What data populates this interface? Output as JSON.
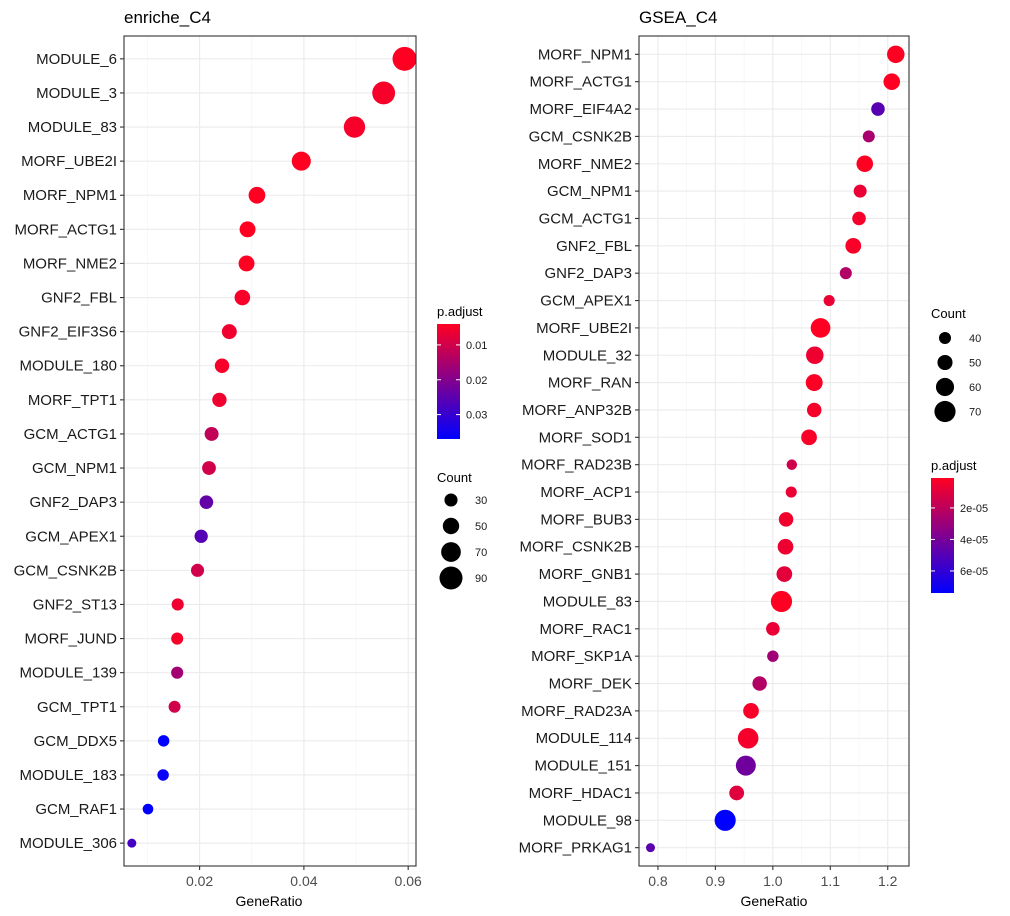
{
  "chart_data": [
    {
      "type": "scatter",
      "title": "enriche_C4",
      "xlabel": "GeneRatio",
      "ylabel": "",
      "xlim": [
        0.0055,
        0.0615
      ],
      "xticks": [
        0.02,
        0.04,
        0.06
      ],
      "xtick_labels": [
        "0.02",
        "0.04",
        "0.06"
      ],
      "grid": true,
      "color_var": "p.adjust",
      "size_var": "Count",
      "color_range": [
        0.004,
        0.037
      ],
      "color_low": "#FF0022",
      "color_high": "#0000FF",
      "size_range": [
        5,
        96
      ],
      "categories": [
        "MODULE_6",
        "MODULE_3",
        "MODULE_83",
        "MORF_UBE2I",
        "MORF_NPM1",
        "MORF_ACTG1",
        "MORF_NME2",
        "GNF2_FBL",
        "GNF2_EIF3S6",
        "MODULE_180",
        "MORF_TPT1",
        "GCM_ACTG1",
        "GCM_NPM1",
        "GNF2_DAP3",
        "GCM_APEX1",
        "GCM_CSNK2B",
        "GNF2_ST13",
        "MORF_JUND",
        "MODULE_139",
        "GCM_TPT1",
        "GCM_DDX5",
        "MODULE_183",
        "GCM_RAF1",
        "MODULE_306"
      ],
      "x": [
        0.0593,
        0.0553,
        0.0497,
        0.0395,
        0.031,
        0.0292,
        0.029,
        0.0282,
        0.0257,
        0.0243,
        0.0238,
        0.0223,
        0.0218,
        0.0213,
        0.0203,
        0.0196,
        0.0158,
        0.0157,
        0.0157,
        0.0152,
        0.0131,
        0.013,
        0.0101,
        0.007
      ],
      "count": [
        96,
        89,
        80,
        66,
        52,
        47,
        47,
        45,
        41,
        38,
        37,
        35,
        34,
        33,
        31,
        30,
        24,
        24,
        24,
        23,
        20,
        20,
        15,
        5
      ],
      "p_adjust": [
        0.004,
        0.005,
        0.005,
        0.004,
        0.004,
        0.004,
        0.004,
        0.005,
        0.006,
        0.005,
        0.006,
        0.012,
        0.01,
        0.024,
        0.026,
        0.01,
        0.006,
        0.005,
        0.016,
        0.01,
        0.037,
        0.036,
        0.037,
        0.028
      ],
      "legend": {
        "color_title": "p.adjust",
        "color_ticks": [
          0.01,
          0.02,
          0.03
        ],
        "color_tick_labels": [
          "0.01",
          "0.02",
          "0.03"
        ],
        "size_title": "Count",
        "size_ticks": [
          30,
          50,
          70,
          90
        ],
        "size_tick_labels": [
          "30",
          "50",
          "70",
          "90"
        ],
        "placement": "right"
      }
    },
    {
      "type": "scatter",
      "title": "GSEA_C4",
      "xlabel": "GeneRatio",
      "ylabel": "",
      "xlim": [
        0.767,
        1.237
      ],
      "xticks": [
        0.8,
        0.9,
        1.0,
        1.1,
        1.2
      ],
      "xtick_labels": [
        "0.8",
        "0.9",
        "1.0",
        "1.1",
        "1.2"
      ],
      "grid": true,
      "color_var": "p.adjust",
      "size_var": "Count",
      "color_range": [
        1e-06,
        7.4e-05
      ],
      "color_low": "#FF0022",
      "color_high": "#0000FF",
      "size_range": [
        30,
        76
      ],
      "categories": [
        "MORF_NPM1",
        "MORF_ACTG1",
        "MORF_EIF4A2",
        "GCM_CSNK2B",
        "MORF_NME2",
        "GCM_NPM1",
        "GCM_ACTG1",
        "GNF2_FBL",
        "GNF2_DAP3",
        "GCM_APEX1",
        "MORF_UBE2I",
        "MODULE_32",
        "MORF_RAN",
        "MORF_ANP32B",
        "MORF_SOD1",
        "MORF_RAD23B",
        "MORF_ACP1",
        "MORF_BUB3",
        "MORF_CSNK2B",
        "MORF_GNB1",
        "MODULE_83",
        "MORF_RAC1",
        "MORF_SKP1A",
        "MORF_DEK",
        "MORF_RAD23A",
        "MODULE_114",
        "MODULE_151",
        "MORF_HDAC1",
        "MODULE_98",
        "MORF_PRKAG1"
      ],
      "x": [
        1.214,
        1.207,
        1.183,
        1.167,
        1.16,
        1.152,
        1.15,
        1.14,
        1.127,
        1.098,
        1.083,
        1.073,
        1.072,
        1.072,
        1.063,
        1.033,
        1.032,
        1.023,
        1.022,
        1.02,
        1.015,
        1.0,
        1.0,
        0.977,
        0.962,
        0.957,
        0.953,
        0.937,
        0.917,
        0.787
      ],
      "count": [
        58,
        55,
        45,
        40,
        55,
        43,
        45,
        52,
        40,
        37,
        65,
        58,
        56,
        48,
        52,
        35,
        37,
        48,
        52,
        52,
        70,
        45,
        38,
        48,
        52,
        68,
        66,
        49,
        70,
        30
      ],
      "p_adjust": [
        1e-06,
        1e-06,
        4.9e-05,
        2.6e-05,
        1e-06,
        7e-06,
        4e-06,
        3e-06,
        2.3e-05,
        7e-06,
        1e-06,
        6e-06,
        2e-06,
        4e-06,
        3e-06,
        1.5e-05,
        7e-06,
        5e-06,
        6e-06,
        9e-06,
        1e-06,
        7e-06,
        2.8e-05,
        2.3e-05,
        3e-06,
        4e-06,
        4.2e-05,
        1e-05,
        7.4e-05,
        4.8e-05
      ],
      "legend": {
        "color_title": "p.adjust",
        "color_ticks": [
          2e-05,
          4e-05,
          6e-05
        ],
        "color_tick_labels": [
          "2e-05",
          "4e-05",
          "6e-05"
        ],
        "size_title": "Count",
        "size_ticks": [
          40,
          50,
          60,
          70
        ],
        "size_tick_labels": [
          "40",
          "50",
          "60",
          "70"
        ],
        "placement": "right"
      }
    }
  ]
}
